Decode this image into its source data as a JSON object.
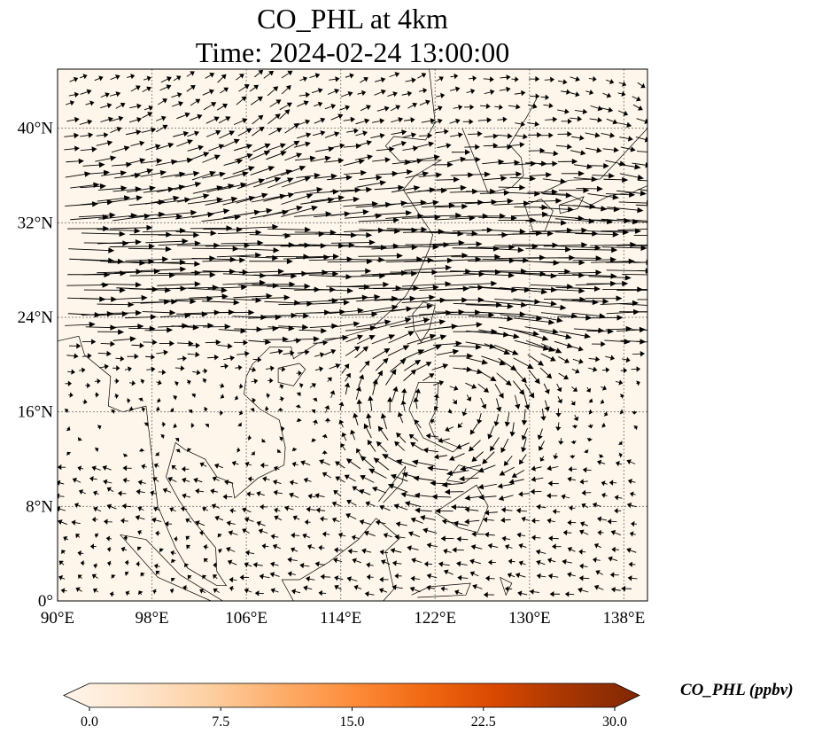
{
  "title": {
    "line1": "CO_PHL at 4km",
    "line2": "Time: 2024-02-24 13:00:00"
  },
  "map": {
    "lon_range": [
      90,
      140
    ],
    "lat_range": [
      0,
      45
    ],
    "background_color": "#fef6ea",
    "gridlines": "dotted",
    "x_ticks": [
      {
        "value": 90,
        "label": "90°E"
      },
      {
        "value": 98,
        "label": "98°E"
      },
      {
        "value": 106,
        "label": "106°E"
      },
      {
        "value": 114,
        "label": "114°E"
      },
      {
        "value": 122,
        "label": "122°E"
      },
      {
        "value": 130,
        "label": "130°E"
      },
      {
        "value": 138,
        "label": "138°E"
      }
    ],
    "y_ticks": [
      {
        "value": 0,
        "label": "0°"
      },
      {
        "value": 8,
        "label": "8°N"
      },
      {
        "value": 16,
        "label": "16°N"
      },
      {
        "value": 24,
        "label": "24°N"
      },
      {
        "value": 32,
        "label": "32°N"
      },
      {
        "value": 40,
        "label": "40°N"
      }
    ],
    "field_variable": "wind vectors (quiver)",
    "jet_axis_lat": 29
  },
  "colorbar": {
    "label": "CO_PHL (ppbv)",
    "colormap": [
      "#fff5eb",
      "#fee6ce",
      "#fdd0a2",
      "#fdae6b",
      "#fd8d3c",
      "#f16913",
      "#d94801",
      "#a63603",
      "#7f2704"
    ],
    "min": 0,
    "max": 30,
    "ticks": [
      "0.0",
      "7.5",
      "15.0",
      "22.5",
      "30.0"
    ],
    "extend": "both"
  }
}
